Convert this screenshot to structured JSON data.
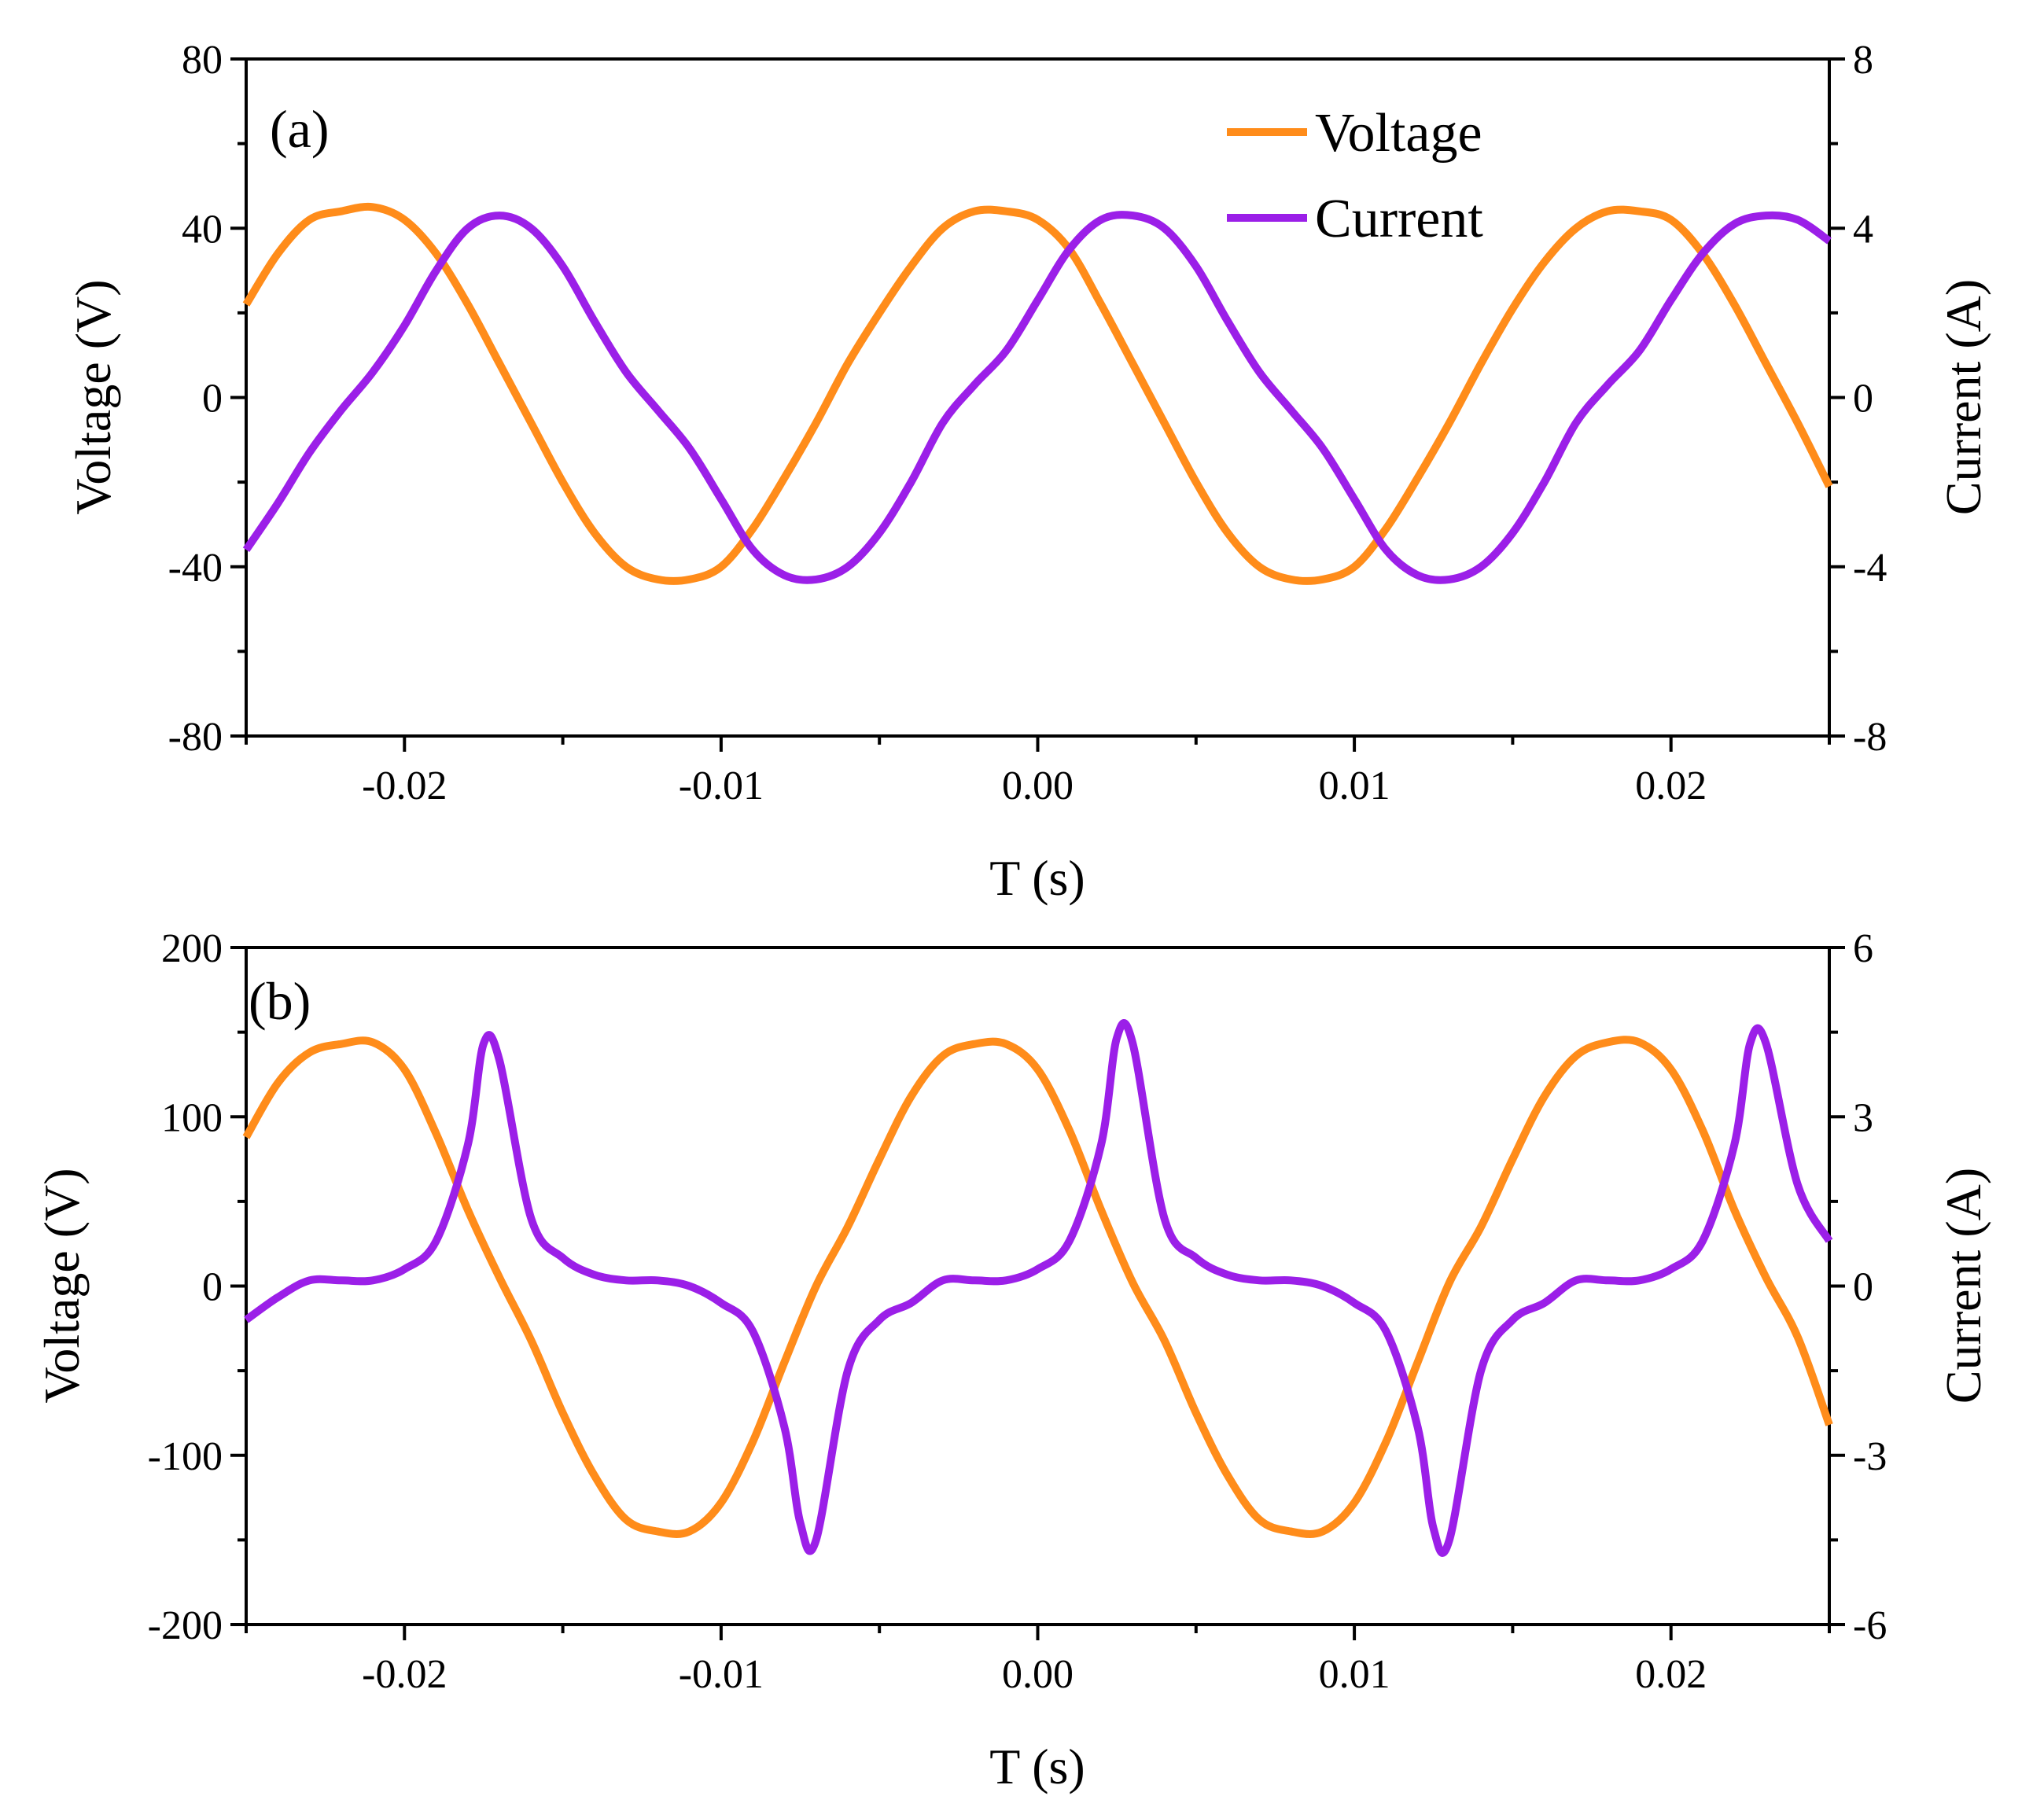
{
  "colors": {
    "voltage": "#ff8c1a",
    "current": "#9b1fe8",
    "axis": "#000000"
  },
  "legend": {
    "voltage_label": "Voltage",
    "current_label": "Current"
  },
  "chart_data": [
    {
      "type": "line",
      "panel_label": "(a)",
      "xlabel": "T (s)",
      "ylabel_left": "Voltage (V)",
      "ylabel_right": "Current (A)",
      "xlim": [
        -0.025,
        0.025
      ],
      "ylim_left": [
        -80,
        80
      ],
      "ylim_right": [
        -8,
        8
      ],
      "xticks": [
        -0.02,
        -0.01,
        0.0,
        0.01,
        0.02
      ],
      "xtick_labels": [
        "-0.02",
        "-0.01",
        "0.00",
        "0.01",
        "0.02"
      ],
      "yticks_left": [
        -80,
        -40,
        0,
        40,
        80
      ],
      "ytick_labels_left": [
        "-80",
        "-40",
        "0",
        "40",
        "80"
      ],
      "yticks_right": [
        -8,
        -4,
        0,
        4,
        8
      ],
      "ytick_labels_right": [
        "-8",
        "-4",
        "0",
        "4",
        "8"
      ],
      "legend_location": "top-right",
      "series": [
        {
          "name": "Voltage",
          "axis": "left",
          "x": [
            -0.025,
            -0.024,
            -0.023,
            -0.022,
            -0.021,
            -0.02,
            -0.019,
            -0.018,
            -0.017,
            -0.016,
            -0.015,
            -0.014,
            -0.013,
            -0.012,
            -0.011,
            -0.01,
            -0.009,
            -0.008,
            -0.007,
            -0.006,
            -0.005,
            -0.004,
            -0.003,
            -0.002,
            -0.001,
            0.0,
            0.001,
            0.002,
            0.003,
            0.004,
            0.005,
            0.006,
            0.007,
            0.008,
            0.009,
            0.01,
            0.011,
            0.012,
            0.013,
            0.014,
            0.015,
            0.016,
            0.017,
            0.018,
            0.019,
            0.02,
            0.021,
            0.022,
            0.023,
            0.024,
            0.025
          ],
          "values": [
            22,
            34,
            42,
            44,
            45,
            42,
            34,
            22,
            8,
            -6,
            -20,
            -32,
            -40,
            -43,
            -43,
            -40,
            -31,
            -19,
            -6,
            8,
            20,
            31,
            40,
            44,
            44,
            42,
            35,
            22,
            8,
            -6,
            -20,
            -32,
            -40,
            -43,
            -43,
            -40,
            -31,
            -19,
            -6,
            8,
            21,
            32,
            40,
            44,
            44,
            42,
            34,
            22,
            8,
            -6,
            -21
          ]
        },
        {
          "name": "Current",
          "axis": "right",
          "x": [
            -0.025,
            -0.024,
            -0.023,
            -0.022,
            -0.021,
            -0.02,
            -0.019,
            -0.018,
            -0.017,
            -0.016,
            -0.015,
            -0.014,
            -0.013,
            -0.012,
            -0.011,
            -0.01,
            -0.009,
            -0.008,
            -0.007,
            -0.006,
            -0.005,
            -0.004,
            -0.003,
            -0.002,
            -0.001,
            0.0,
            0.001,
            0.002,
            0.003,
            0.004,
            0.005,
            0.006,
            0.007,
            0.008,
            0.009,
            0.01,
            0.011,
            0.012,
            0.013,
            0.014,
            0.015,
            0.016,
            0.017,
            0.018,
            0.019,
            0.02,
            0.021,
            0.022,
            0.023,
            0.024,
            0.025
          ],
          "values": [
            -3.6,
            -2.5,
            -1.3,
            -0.3,
            0.6,
            1.7,
            3.0,
            4.0,
            4.3,
            4.0,
            3.1,
            1.8,
            0.6,
            -0.3,
            -1.2,
            -2.4,
            -3.6,
            -4.2,
            -4.3,
            -4.0,
            -3.2,
            -2.0,
            -0.6,
            0.3,
            1.1,
            2.3,
            3.5,
            4.2,
            4.3,
            4.0,
            3.1,
            1.8,
            0.6,
            -0.3,
            -1.2,
            -2.4,
            -3.6,
            -4.2,
            -4.3,
            -4.0,
            -3.2,
            -2.0,
            -0.6,
            0.3,
            1.1,
            2.3,
            3.4,
            4.1,
            4.3,
            4.2,
            3.7
          ]
        }
      ]
    },
    {
      "type": "line",
      "panel_label": "(b)",
      "xlabel": "T (s)",
      "ylabel_left": "Voltage (V)",
      "ylabel_right": "Current (A)",
      "xlim": [
        -0.025,
        0.025
      ],
      "ylim_left": [
        -200,
        200
      ],
      "ylim_right": [
        -6,
        6
      ],
      "xticks": [
        -0.02,
        -0.01,
        0.0,
        0.01,
        0.02
      ],
      "xtick_labels": [
        "-0.02",
        "-0.01",
        "0.00",
        "0.01",
        "0.02"
      ],
      "yticks_left": [
        -200,
        -100,
        0,
        100,
        200
      ],
      "ytick_labels_left": [
        "-200",
        "-100",
        "0",
        "100",
        "200"
      ],
      "yticks_right": [
        -6,
        -3,
        0,
        3,
        6
      ],
      "ytick_labels_right": [
        "-6",
        "-3",
        "0",
        "3",
        "6"
      ],
      "series": [
        {
          "name": "Voltage",
          "axis": "left",
          "x": [
            -0.025,
            -0.024,
            -0.023,
            -0.022,
            -0.021,
            -0.02,
            -0.019,
            -0.018,
            -0.017,
            -0.016,
            -0.015,
            -0.014,
            -0.013,
            -0.012,
            -0.011,
            -0.01,
            -0.009,
            -0.008,
            -0.007,
            -0.006,
            -0.005,
            -0.004,
            -0.003,
            -0.002,
            -0.001,
            0.0,
            0.001,
            0.002,
            0.003,
            0.004,
            0.005,
            0.006,
            0.007,
            0.008,
            0.009,
            0.01,
            0.011,
            0.012,
            0.013,
            0.014,
            0.015,
            0.016,
            0.017,
            0.018,
            0.019,
            0.02,
            0.021,
            0.022,
            0.023,
            0.024,
            0.025
          ],
          "values": [
            88,
            120,
            138,
            143,
            144,
            128,
            90,
            45,
            5,
            -32,
            -75,
            -112,
            -138,
            -145,
            -145,
            -128,
            -92,
            -45,
            0,
            35,
            75,
            112,
            136,
            143,
            143,
            128,
            92,
            45,
            2,
            -32,
            -75,
            -112,
            -138,
            -145,
            -145,
            -128,
            -92,
            -45,
            2,
            35,
            75,
            112,
            136,
            144,
            144,
            128,
            92,
            45,
            5,
            -30,
            -82
          ]
        },
        {
          "name": "Current",
          "axis": "right",
          "x": [
            -0.025,
            -0.024,
            -0.023,
            -0.022,
            -0.021,
            -0.02,
            -0.019,
            -0.018,
            -0.0175,
            -0.017,
            -0.016,
            -0.015,
            -0.014,
            -0.013,
            -0.012,
            -0.011,
            -0.01,
            -0.009,
            -0.008,
            -0.0075,
            -0.007,
            -0.006,
            -0.005,
            -0.004,
            -0.003,
            -0.002,
            -0.001,
            0.0,
            0.001,
            0.002,
            0.0025,
            0.003,
            0.004,
            0.005,
            0.006,
            0.007,
            0.008,
            0.009,
            0.01,
            0.011,
            0.012,
            0.0125,
            0.013,
            0.014,
            0.015,
            0.016,
            0.017,
            0.018,
            0.019,
            0.02,
            0.021,
            0.022,
            0.0225,
            0.023,
            0.024,
            0.025
          ],
          "values": [
            -0.6,
            -0.2,
            0.1,
            0.1,
            0.1,
            0.3,
            0.8,
            2.5,
            4.3,
            4.0,
            1.2,
            0.5,
            0.2,
            0.1,
            0.1,
            0.0,
            -0.3,
            -0.8,
            -2.5,
            -4.2,
            -4.5,
            -1.5,
            -0.6,
            -0.3,
            0.1,
            0.1,
            0.1,
            0.3,
            0.8,
            2.5,
            4.4,
            4.3,
            1.2,
            0.5,
            0.2,
            0.1,
            0.1,
            0.0,
            -0.3,
            -0.8,
            -2.5,
            -4.3,
            -4.5,
            -1.5,
            -0.6,
            -0.3,
            0.1,
            0.1,
            0.1,
            0.3,
            0.8,
            2.5,
            4.3,
            4.3,
            1.8,
            0.8
          ]
        }
      ]
    }
  ]
}
